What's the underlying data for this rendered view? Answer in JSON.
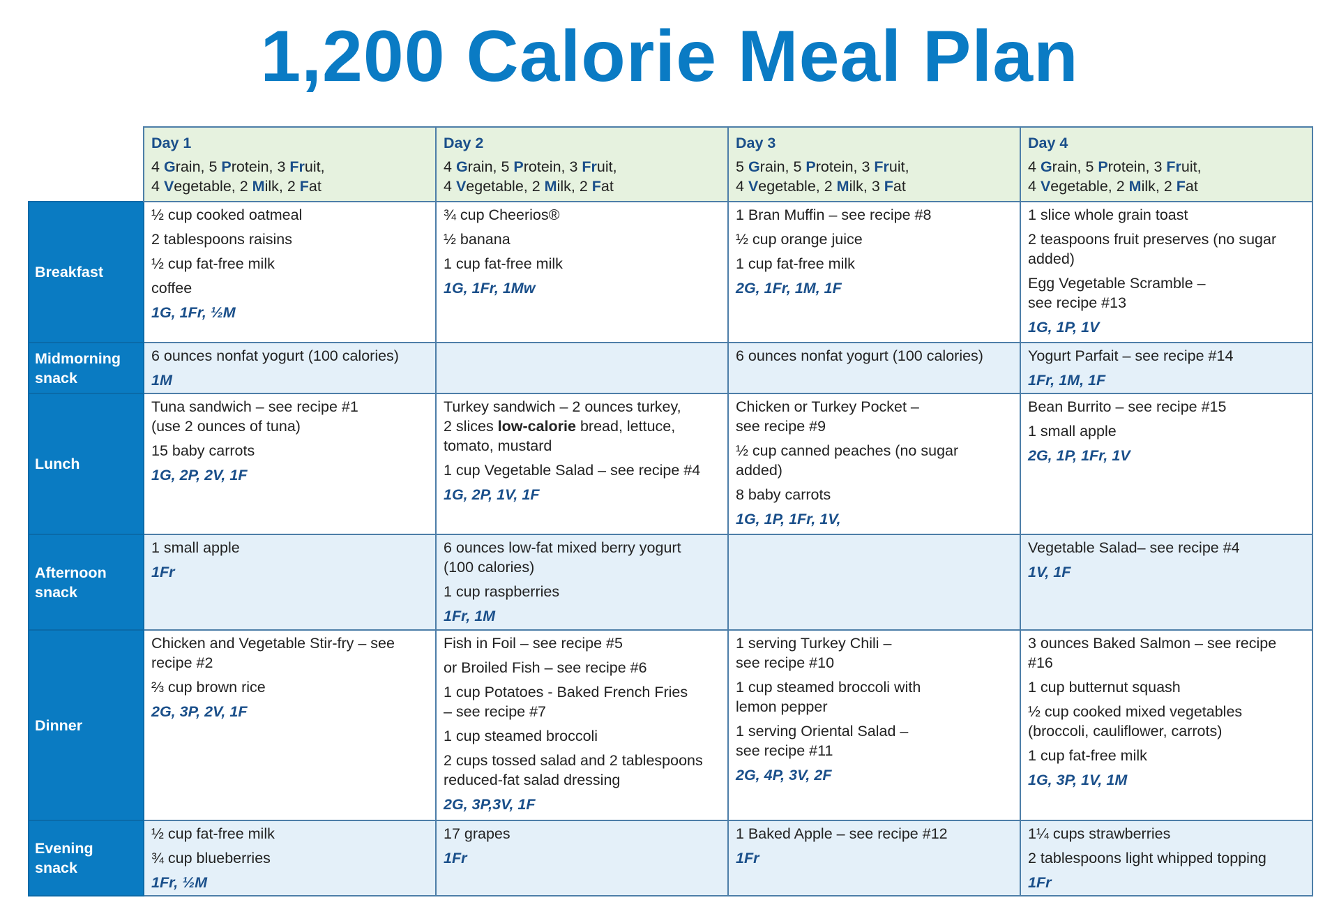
{
  "title": "1,200 Calorie Meal Plan",
  "colors": {
    "title": "#0a7bc4",
    "row_header_bg": "#0a7bc2",
    "day_header_bg": "#e6f2df",
    "alt_row_bg": "#e4f0f9",
    "code_text": "#1a4f8a"
  },
  "days": [
    {
      "name": "Day 1",
      "summary": [
        [
          {
            "t": "4 "
          },
          {
            "t": "G",
            "b": 1
          },
          {
            "t": "rain, 5 "
          },
          {
            "t": "P",
            "b": 1
          },
          {
            "t": "rotein, 3 "
          },
          {
            "t": "Fr",
            "b": 1
          },
          {
            "t": "uit,"
          }
        ],
        [
          {
            "t": "4 "
          },
          {
            "t": "V",
            "b": 1
          },
          {
            "t": "egetable, 2 "
          },
          {
            "t": "M",
            "b": 1
          },
          {
            "t": "ilk, 2 "
          },
          {
            "t": "F",
            "b": 1
          },
          {
            "t": "at"
          }
        ]
      ]
    },
    {
      "name": "Day 2",
      "summary": [
        [
          {
            "t": "4 "
          },
          {
            "t": "G",
            "b": 1
          },
          {
            "t": "rain, 5 "
          },
          {
            "t": "P",
            "b": 1
          },
          {
            "t": "rotein, 3 "
          },
          {
            "t": "Fr",
            "b": 1
          },
          {
            "t": "uit,"
          }
        ],
        [
          {
            "t": "4 "
          },
          {
            "t": "V",
            "b": 1
          },
          {
            "t": "egetable, 2 "
          },
          {
            "t": "M",
            "b": 1
          },
          {
            "t": "ilk, 2 "
          },
          {
            "t": "F",
            "b": 1
          },
          {
            "t": "at"
          }
        ]
      ]
    },
    {
      "name": "Day 3",
      "summary": [
        [
          {
            "t": "5 "
          },
          {
            "t": "G",
            "b": 1
          },
          {
            "t": "rain, 5 "
          },
          {
            "t": "P",
            "b": 1
          },
          {
            "t": "rotein, 3 "
          },
          {
            "t": "Fr",
            "b": 1
          },
          {
            "t": "uit,"
          }
        ],
        [
          {
            "t": "4 "
          },
          {
            "t": "V",
            "b": 1
          },
          {
            "t": "egetable, 2 "
          },
          {
            "t": "M",
            "b": 1
          },
          {
            "t": "ilk, 3 "
          },
          {
            "t": "F",
            "b": 1
          },
          {
            "t": "at"
          }
        ]
      ]
    },
    {
      "name": "Day 4",
      "summary": [
        [
          {
            "t": "4 "
          },
          {
            "t": "G",
            "b": 1
          },
          {
            "t": "rain, 5 "
          },
          {
            "t": "P",
            "b": 1
          },
          {
            "t": "rotein, 3 "
          },
          {
            "t": "Fr",
            "b": 1
          },
          {
            "t": "uit,"
          }
        ],
        [
          {
            "t": "4 "
          },
          {
            "t": "V",
            "b": 1
          },
          {
            "t": "egetable, 2 "
          },
          {
            "t": "M",
            "b": 1
          },
          {
            "t": "ilk, 2 "
          },
          {
            "t": "F",
            "b": 1
          },
          {
            "t": "at"
          }
        ]
      ]
    }
  ],
  "meals": [
    {
      "label": "Breakfast",
      "alt": false,
      "cells": [
        {
          "items": [
            "½ cup cooked oatmeal",
            "2 tablespoons raisins",
            "½ cup fat-free milk",
            "coffee"
          ],
          "code": "1G, 1Fr, ½M"
        },
        {
          "items": [
            "¾ cup Cheerios®",
            "½ banana",
            "1 cup fat-free milk"
          ],
          "code": "1G, 1Fr, 1Mw"
        },
        {
          "items": [
            "1 Bran Muffin – see recipe #8",
            "½ cup orange juice",
            "1 cup fat-free milk"
          ],
          "code": "2G, 1Fr, 1M, 1F"
        },
        {
          "items": [
            "1 slice  whole grain toast",
            "2 teaspoons fruit preserves (no sugar\nadded)",
            "Egg Vegetable Scramble –\nsee recipe #13"
          ],
          "code": "1G, 1P, 1V"
        }
      ]
    },
    {
      "label": "Midmorning snack",
      "alt": true,
      "cells": [
        {
          "items": [
            "6 ounces nonfat yogurt (100 calories)"
          ],
          "code": "1M"
        },
        {
          "items": [],
          "code": ""
        },
        {
          "items": [
            "6 ounces nonfat yogurt (100 calories)"
          ],
          "code": ""
        },
        {
          "items": [
            "Yogurt Parfait – see recipe #14"
          ],
          "code": "1Fr, 1M, 1F"
        }
      ]
    },
    {
      "label": "Lunch",
      "alt": false,
      "cells": [
        {
          "items": [
            "Tuna sandwich – see recipe #1\n(use 2 ounces of tuna)",
            "15 baby carrots"
          ],
          "code": "1G, 2P, 2V, 1F"
        },
        {
          "items": [
            [
              {
                "t": "Turkey sandwich –  2 ounces turkey,\n2 slices "
              },
              {
                "t": "low-calorie",
                "b": 1
              },
              {
                "t": " bread, lettuce,\ntomato, mustard"
              }
            ],
            "1 cup Vegetable Salad – see recipe #4"
          ],
          "code": "1G, 2P, 1V, 1F"
        },
        {
          "items": [
            "Chicken or Turkey Pocket –\nsee recipe #9",
            "½ cup canned peaches (no sugar\nadded)",
            "8 baby carrots"
          ],
          "code": "1G, 1P, 1Fr, 1V,"
        },
        {
          "items": [
            "Bean Burrito – see recipe #15",
            "1 small apple"
          ],
          "code": "2G, 1P, 1Fr, 1V"
        }
      ]
    },
    {
      "label": "Afternoon snack",
      "alt": true,
      "cells": [
        {
          "items": [
            "1 small apple"
          ],
          "code": "1Fr"
        },
        {
          "items": [
            "6 ounces low-fat mixed berry yogurt\n(100 calories)",
            "1 cup raspberries"
          ],
          "code": "1Fr, 1M"
        },
        {
          "items": [],
          "code": ""
        },
        {
          "items": [
            "Vegetable Salad– see recipe #4"
          ],
          "code": "1V, 1F"
        }
      ]
    },
    {
      "label": "Dinner",
      "alt": false,
      "cells": [
        {
          "items": [
            "Chicken and Vegetable Stir-fry – see\nrecipe #2",
            "⅔ cup brown rice"
          ],
          "code": "2G, 3P, 2V, 1F"
        },
        {
          "items": [
            "Fish in Foil – see recipe #5",
            "or Broiled Fish – see recipe #6",
            "1 cup Potatoes - Baked French Fries\n– see recipe #7",
            "1 cup steamed broccoli",
            "2 cups tossed salad and 2 tablespoons\nreduced-fat salad dressing"
          ],
          "code": "2G, 3P,3V, 1F"
        },
        {
          "items": [
            "1 serving Turkey Chili –\n see recipe #10",
            "1 cup steamed broccoli with\nlemon pepper",
            "1 serving Oriental Salad –\n see recipe #11"
          ],
          "code": "2G, 4P, 3V, 2F"
        },
        {
          "items": [
            "3 ounces Baked Salmon – see recipe\n#16",
            "1 cup butternut squash",
            "½ cup cooked mixed vegetables\n(broccoli, cauliflower, carrots)",
            "1 cup fat-free milk"
          ],
          "code": "1G, 3P, 1V, 1M"
        }
      ]
    },
    {
      "label": "Evening snack",
      "alt": true,
      "cells": [
        {
          "items": [
            "½ cup fat-free milk",
            "¾ cup blueberries"
          ],
          "code": "1Fr, ½M"
        },
        {
          "items": [
            "17 grapes"
          ],
          "code": "1Fr"
        },
        {
          "items": [
            "1 Baked Apple – see recipe #12"
          ],
          "code": "1Fr"
        },
        {
          "items": [
            "1¼  cups strawberries",
            "2 tablespoons light whipped topping"
          ],
          "code": "1Fr"
        }
      ]
    }
  ]
}
